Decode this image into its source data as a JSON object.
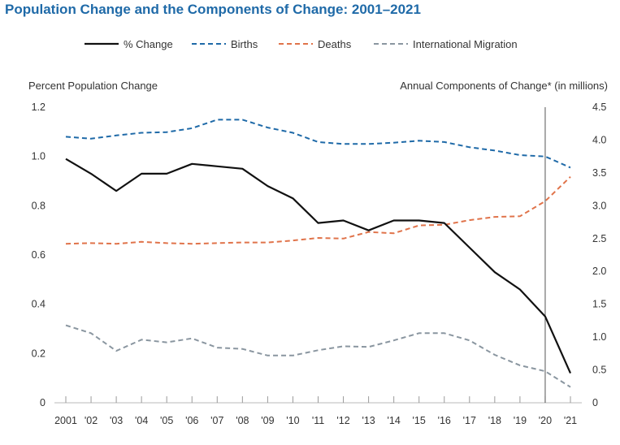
{
  "chart_data": {
    "type": "line",
    "title": "Population Change and the Components of Change: 2001–2021",
    "categories": [
      "2001",
      "'02",
      "'03",
      "'04",
      "'05",
      "'06",
      "'07",
      "'08",
      "'09",
      "'10",
      "'11",
      "'12",
      "'13",
      "'14",
      "'15",
      "'16",
      "'17",
      "'18",
      "'19",
      "'20",
      "'21"
    ],
    "left_axis": {
      "label": "Percent Population Change",
      "range": [
        0,
        1.2
      ],
      "ticks": [
        "0",
        "0.2",
        "0.4",
        "0.6",
        "0.8",
        "1.0",
        "1.2"
      ]
    },
    "right_axis": {
      "label": "Annual Components of Change* (in millions)",
      "range": [
        0,
        4.5
      ],
      "ticks": [
        "0",
        "0.5",
        "1.0",
        "1.5",
        "2.0",
        "2.5",
        "3.0",
        "3.5",
        "4.0",
        "4.5"
      ]
    },
    "series": [
      {
        "name": "% Change",
        "axis": "left",
        "style": "solid",
        "color": "#111111",
        "values": [
          0.99,
          0.93,
          0.86,
          0.93,
          0.93,
          0.97,
          0.96,
          0.95,
          0.88,
          0.83,
          0.73,
          0.74,
          0.7,
          0.74,
          0.74,
          0.73,
          0.63,
          0.53,
          0.46,
          0.35,
          0.12
        ]
      },
      {
        "name": "Births",
        "axis": "right",
        "style": "dashed",
        "color": "#1f6aa8",
        "values": [
          4.05,
          4.02,
          4.07,
          4.11,
          4.12,
          4.18,
          4.31,
          4.31,
          4.19,
          4.11,
          3.97,
          3.94,
          3.94,
          3.96,
          3.99,
          3.97,
          3.89,
          3.84,
          3.77,
          3.75,
          3.58
        ]
      },
      {
        "name": "Deaths",
        "axis": "right",
        "style": "dashed",
        "color": "#e0734a",
        "values": [
          2.42,
          2.43,
          2.42,
          2.45,
          2.43,
          2.42,
          2.43,
          2.44,
          2.44,
          2.47,
          2.51,
          2.5,
          2.6,
          2.58,
          2.7,
          2.71,
          2.78,
          2.83,
          2.84,
          3.07,
          3.44
        ]
      },
      {
        "name": "International Migration",
        "axis": "right",
        "style": "dashed",
        "color": "#8a96a0",
        "values": [
          1.18,
          1.06,
          0.79,
          0.96,
          0.92,
          0.98,
          0.84,
          0.82,
          0.72,
          0.72,
          0.8,
          0.86,
          0.85,
          0.95,
          1.06,
          1.06,
          0.95,
          0.73,
          0.57,
          0.48,
          0.24
        ]
      }
    ],
    "reference_line": {
      "at_category": "'20"
    },
    "legend_position": "top"
  }
}
